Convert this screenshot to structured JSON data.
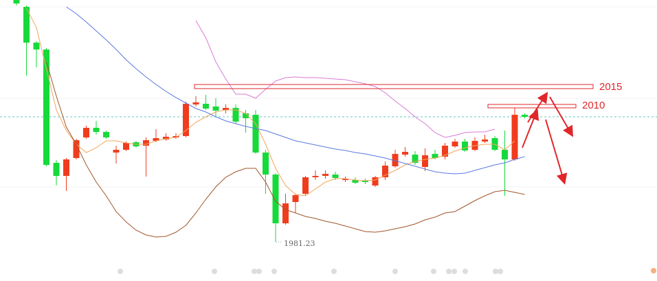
{
  "chart_data": {
    "type": "candlestick",
    "up_color": "#f03c1e",
    "down_color": "#16d93a",
    "open": [
      3741,
      3691,
      3431,
      3381,
      2556,
      2461,
      2591,
      2741,
      2811,
      2781,
      2631,
      2651,
      2706,
      2681,
      2716,
      2726,
      2741,
      2751,
      2981,
      2986,
      2966,
      2941,
      2956,
      2916,
      2906,
      2631,
      2471,
      2116,
      2271,
      2331,
      2451,
      2461,
      2471,
      2431,
      2431,
      2426,
      2391,
      2451,
      2531,
      2616,
      2616,
      2526,
      2621,
      2601,
      2676,
      2711,
      2651,
      2711,
      2736,
      2651,
      2581,
      2906
    ],
    "high": [
      3741.23,
      3701,
      3441,
      3391,
      2576,
      2591,
      2731,
      2826,
      2861,
      2791,
      2681,
      2711,
      2716,
      2741,
      2801,
      2771,
      2771,
      3001,
      3041,
      3051,
      3026,
      2981,
      2981,
      2941,
      2941,
      2651,
      2481,
      2331,
      2331,
      2461,
      2501,
      2501,
      2491,
      2456,
      2451,
      2441,
      2461,
      2566,
      2651,
      2671,
      2641,
      2661,
      2651,
      2701,
      2731,
      2731,
      2741,
      2761,
      2751,
      2791,
      2956,
      2916
    ],
    "low": [
      3701,
      3191,
      3251,
      2531,
      2391,
      2351,
      2581,
      2731,
      2761,
      2731,
      2551,
      2641,
      2666,
      2456,
      2706,
      2716,
      2731,
      2741,
      2966,
      2941,
      2891,
      2916,
      2841,
      2776,
      2621,
      2331,
      1981.23,
      2106,
      2191,
      2321,
      2431,
      2441,
      2431,
      2416,
      2401,
      2401,
      2381,
      2431,
      2521,
      2601,
      2541,
      2496,
      2581,
      2581,
      2666,
      2636,
      2641,
      2701,
      2641,
      2316,
      2571,
      2881
    ],
    "close": [
      3716,
      3431,
      3381,
      2541,
      2461,
      2581,
      2721,
      2811,
      2781,
      2741,
      2651,
      2701,
      2676,
      2721,
      2736,
      2746,
      2751,
      2986,
      2996,
      2951,
      2936,
      2956,
      2856,
      2881,
      2631,
      2471,
      2116,
      2261,
      2321,
      2451,
      2461,
      2476,
      2446,
      2441,
      2411,
      2416,
      2451,
      2536,
      2621,
      2636,
      2556,
      2611,
      2591,
      2681,
      2711,
      2646,
      2716,
      2726,
      2651,
      2581,
      2906,
      2891
    ],
    "series": [
      {
        "color": "#f5a55a",
        "values": [
          null,
          3681,
          3541,
          3241,
          2941,
          2791,
          2691,
          2631,
          2666,
          2716,
          2716,
          2701,
          2691,
          2691,
          2716,
          2731,
          2741,
          2791,
          2851,
          2891,
          2926,
          2941,
          2941,
          2916,
          2841,
          2691,
          2516,
          2391,
          2326,
          2316,
          2366,
          2416,
          2441,
          2441,
          2431,
          2426,
          2431,
          2466,
          2501,
          2541,
          2566,
          2581,
          2591,
          2611,
          2641,
          2666,
          2681,
          2691,
          2691,
          2651,
          2716,
          null
        ]
      },
      {
        "color": "#5a78e0",
        "values": [
          null,
          null,
          null,
          null,
          null,
          3691,
          3641,
          3581,
          3516,
          3451,
          3381,
          3306,
          3241,
          3181,
          3126,
          3076,
          3031,
          2991,
          2951,
          2926,
          2891,
          2861,
          2841,
          2821,
          2806,
          2791,
          2766,
          2741,
          2716,
          2701,
          2686,
          2671,
          2656,
          2646,
          2631,
          2621,
          2606,
          2591,
          2571,
          2551,
          2531,
          2511,
          2491,
          2481,
          2476,
          2481,
          2501,
          2521,
          2541,
          2556,
          2581,
          2601
        ]
      },
      {
        "color": "#d97ad6",
        "values": [
          null,
          null,
          null,
          null,
          null,
          null,
          null,
          null,
          null,
          null,
          null,
          null,
          null,
          null,
          null,
          null,
          null,
          null,
          3591,
          3466,
          3291,
          3166,
          3056,
          3056,
          3026,
          3091,
          3151,
          3176,
          3181,
          3176,
          3176,
          3171,
          3166,
          3161,
          3146,
          3131,
          3111,
          3066,
          3006,
          2951,
          2891,
          2841,
          2776,
          2741,
          2756,
          2776,
          2781,
          2781,
          2801,
          null,
          null,
          null
        ]
      },
      {
        "color": "#a0552a",
        "values": [
          null,
          null,
          null,
          3291,
          3041,
          2816,
          2691,
          2541,
          2416,
          2316,
          2201,
          2126,
          2066,
          2031,
          2016,
          2021,
          2051,
          2101,
          2191,
          2291,
          2381,
          2451,
          2491,
          2516,
          2516,
          2416,
          2276,
          2216,
          2191,
          2166,
          2151,
          2131,
          2116,
          2096,
          2076,
          2056,
          2051,
          2061,
          2076,
          2091,
          2111,
          2141,
          2161,
          2191,
          2201,
          2241,
          2281,
          2316,
          2346,
          2356,
          2341,
          2326
        ]
      }
    ],
    "annotations": [
      "2015",
      "2010"
    ],
    "last_price_color": "#5fc8c0"
  }
}
